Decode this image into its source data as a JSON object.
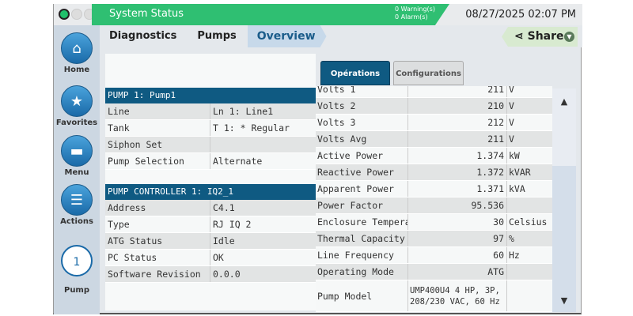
{
  "topbar": {
    "title": "System Status",
    "warnings": "0 Warning(s)",
    "alarms": "0 Alarm(s)",
    "datetime": "08/27/2025 02:07 PM",
    "status_color": "#2fbf72"
  },
  "sidebar": [
    {
      "label": "Home",
      "icon": "home-icon"
    },
    {
      "label": "Favorites",
      "icon": "star-icon"
    },
    {
      "label": "Menu",
      "icon": "menu-icon"
    },
    {
      "label": "Actions",
      "icon": "actions-icon"
    },
    {
      "label": "Pump",
      "badge": "1"
    }
  ],
  "breadcrumb": [
    "Diagnostics",
    "Pumps",
    "Overview"
  ],
  "share": "Share",
  "pump": {
    "header": "PUMP 1: Pump1",
    "rows": [
      [
        "Line",
        "Ln 1: Line1"
      ],
      [
        "Tank",
        "T 1: * Regular"
      ],
      [
        "Siphon Set",
        ""
      ],
      [
        "Pump Selection",
        "Alternate"
      ]
    ]
  },
  "controller": {
    "header": "PUMP CONTROLLER 1: IQ2_1",
    "rows": [
      [
        "Address",
        "C4.1"
      ],
      [
        "Type",
        "RJ IQ 2"
      ],
      [
        "ATG Status",
        "Idle"
      ],
      [
        "PC Status",
        "OK"
      ],
      [
        "Software Revision",
        "0.0.0"
      ]
    ]
  },
  "tabs": [
    "Opérations",
    "Configurations"
  ],
  "operations": [
    [
      "Volts 1",
      "211",
      "V"
    ],
    [
      "Volts 2",
      "210",
      "V"
    ],
    [
      "Volts 3",
      "212",
      "V"
    ],
    [
      "Volts Avg",
      "211",
      "V"
    ],
    [
      "Active Power",
      "1.374",
      "kW"
    ],
    [
      "Reactive Power",
      "1.372",
      "kVAR"
    ],
    [
      "Apparent Power",
      "1.371",
      "kVA"
    ],
    [
      "Power Factor",
      "95.536",
      ""
    ],
    [
      "Enclosure Temperature",
      "30",
      "Celsius"
    ],
    [
      "Thermal Capacity",
      "97",
      "%"
    ],
    [
      "Line Frequency",
      "60",
      "Hz"
    ],
    [
      "Operating Mode",
      "ATG",
      ""
    ],
    [
      "Pump Model",
      "UMP400U4 4 HP, 3P, 208/230 VAC, 60 Hz",
      ""
    ]
  ]
}
